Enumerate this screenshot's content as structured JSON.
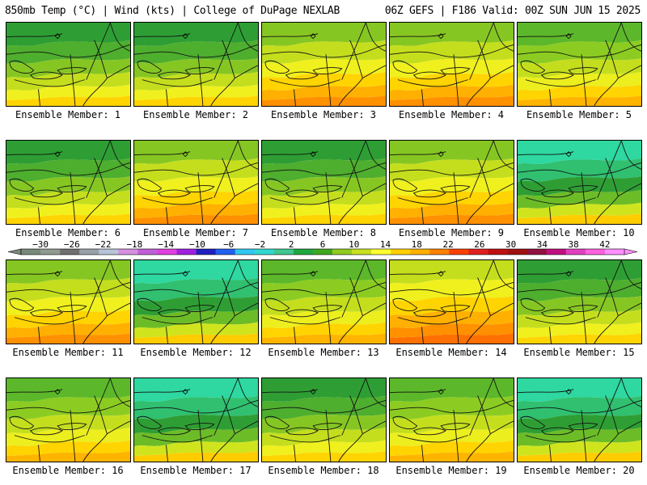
{
  "header": {
    "left": "850mb Temp (°C) | Wind (kts) | College of DuPage NEXLAB",
    "right": "06Z GEFS | F186 Valid: 00Z SUN JUN 15 2025"
  },
  "member_label_prefix": "Ensemble Member: ",
  "members": [
    {
      "id": 1,
      "tint": "cool"
    },
    {
      "id": 2,
      "tint": "cool"
    },
    {
      "id": 3,
      "tint": "warm"
    },
    {
      "id": 4,
      "tint": "warm"
    },
    {
      "id": 5,
      "tint": "mild"
    },
    {
      "id": 6,
      "tint": "cool"
    },
    {
      "id": 7,
      "tint": "warm"
    },
    {
      "id": 8,
      "tint": "cool"
    },
    {
      "id": 9,
      "tint": "warm"
    },
    {
      "id": 10,
      "tint": "cold"
    },
    {
      "id": 11,
      "tint": "warm"
    },
    {
      "id": 12,
      "tint": "cold"
    },
    {
      "id": 13,
      "tint": "mild"
    },
    {
      "id": 14,
      "tint": "hot"
    },
    {
      "id": 15,
      "tint": "cool"
    },
    {
      "id": 16,
      "tint": "mild"
    },
    {
      "id": 17,
      "tint": "cold"
    },
    {
      "id": 18,
      "tint": "cool"
    },
    {
      "id": 19,
      "tint": "mild"
    },
    {
      "id": 20,
      "tint": "cold"
    }
  ],
  "colorbar": {
    "ticks": [
      -30,
      -26,
      -22,
      -18,
      -14,
      -10,
      -6,
      -2,
      2,
      6,
      10,
      14,
      18,
      22,
      26,
      30,
      34,
      38,
      42
    ],
    "colors": [
      "#7a8a7a",
      "#909a90",
      "#707070",
      "#9aa0a8",
      "#b8c4d8",
      "#d690e0",
      "#c060d8",
      "#e040e0",
      "#a020e0",
      "#2020c0",
      "#2060f0",
      "#30c8f0",
      "#30d8d0",
      "#40c890",
      "#20a840",
      "#40a820",
      "#90cc20",
      "#c8e020",
      "#ffff30",
      "#ffd000",
      "#ffb000",
      "#ff8000",
      "#ff4000",
      "#e02020",
      "#c01010",
      "#a01010",
      "#901040",
      "#c01080",
      "#e040c0",
      "#ff60e0",
      "#ff90ff"
    ]
  }
}
